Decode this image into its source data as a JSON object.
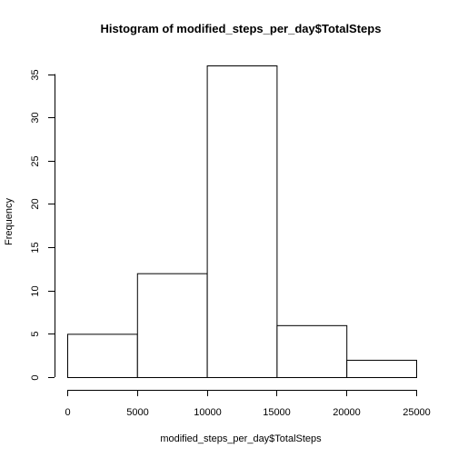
{
  "chart_data": {
    "type": "bar",
    "subtype": "histogram",
    "title": "Histogram of modified_steps_per_day$TotalSteps",
    "xlabel": "modified_steps_per_day$TotalSteps",
    "ylabel": "Frequency",
    "bins": [
      {
        "start": 0,
        "end": 5000,
        "count": 5
      },
      {
        "start": 5000,
        "end": 10000,
        "count": 12
      },
      {
        "start": 10000,
        "end": 15000,
        "count": 36
      },
      {
        "start": 15000,
        "end": 20000,
        "count": 6
      },
      {
        "start": 20000,
        "end": 25000,
        "count": 2
      }
    ],
    "xlim": [
      0,
      25000
    ],
    "ylim": [
      0,
      36
    ],
    "x_ticks": [
      0,
      5000,
      10000,
      15000,
      20000,
      25000
    ],
    "y_ticks": [
      0,
      5,
      10,
      15,
      20,
      25,
      30,
      35
    ],
    "grid": false,
    "colors": {
      "bar_fill": "#ffffff",
      "bar_stroke": "#000000"
    }
  }
}
